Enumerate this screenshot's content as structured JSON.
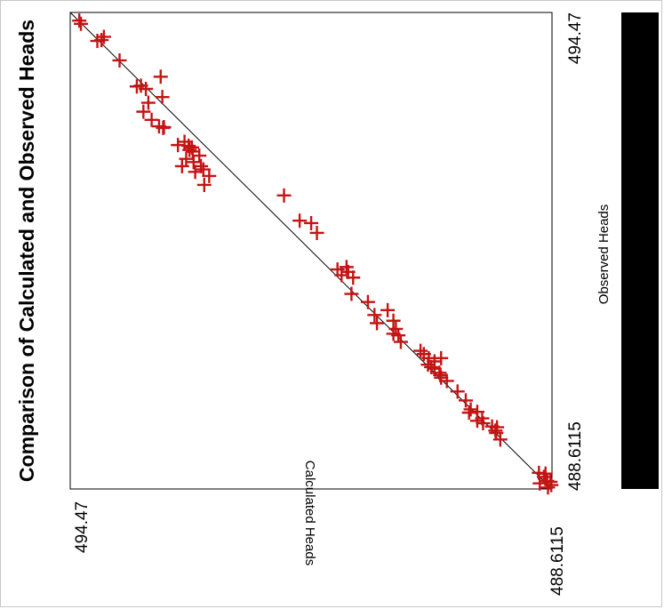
{
  "chart_data": {
    "type": "scatter",
    "title": "Comparison of Calculated and Observed Heads",
    "xlabel": "Observed Heads",
    "ylabel": "Calculated Heads",
    "xlim": [
      488.6115,
      494.47
    ],
    "ylim": [
      488.6115,
      494.47
    ],
    "x_tick_labels": [
      "488.6115",
      "494.47"
    ],
    "y_tick_labels": [
      "488.6115",
      "494.47"
    ],
    "orientation": "rotated 90 degrees counter-clockwise",
    "marker": "plus",
    "marker_color": "#c41414",
    "line_color": "#000000",
    "legend_bar_color": "#000000",
    "reference_line": "y = x",
    "points": [
      [
        494.37,
        494.36
      ],
      [
        494.33,
        494.34
      ],
      [
        494.17,
        494.06
      ],
      [
        494.13,
        494.09
      ],
      [
        494.12,
        494.14
      ],
      [
        493.88,
        493.87
      ],
      [
        493.57,
        493.61
      ],
      [
        493.53,
        493.55
      ],
      [
        493.56,
        493.66
      ],
      [
        493.68,
        493.37
      ],
      [
        493.43,
        493.35
      ],
      [
        493.36,
        493.52
      ],
      [
        493.25,
        493.58
      ],
      [
        493.15,
        493.48
      ],
      [
        493.07,
        493.39
      ],
      [
        493.05,
        493.34
      ],
      [
        493.06,
        493.33
      ],
      [
        492.88,
        493.08
      ],
      [
        492.84,
        493.16
      ],
      [
        492.83,
        493.03
      ],
      [
        492.81,
        492.99
      ],
      [
        492.78,
        493.02
      ],
      [
        492.76,
        492.98
      ],
      [
        492.71,
        492.9
      ],
      [
        492.67,
        493.06
      ],
      [
        492.63,
        492.97
      ],
      [
        492.58,
        493.11
      ],
      [
        492.58,
        492.88
      ],
      [
        492.54,
        492.85
      ],
      [
        492.51,
        492.95
      ],
      [
        492.46,
        492.78
      ],
      [
        492.35,
        492.84
      ],
      [
        492.22,
        491.87
      ],
      [
        491.91,
        491.68
      ],
      [
        491.88,
        491.54
      ],
      [
        491.76,
        491.47
      ],
      [
        491.34,
        491.11
      ],
      [
        491.31,
        491.22
      ],
      [
        491.28,
        491.09
      ],
      [
        491.24,
        491.17
      ],
      [
        491.21,
        491.03
      ],
      [
        491.01,
        491.05
      ],
      [
        490.91,
        490.85
      ],
      [
        490.75,
        490.77
      ],
      [
        490.81,
        490.61
      ],
      [
        490.68,
        490.54
      ],
      [
        490.65,
        490.74
      ],
      [
        490.58,
        490.51
      ],
      [
        490.5,
        490.48
      ],
      [
        490.42,
        490.45
      ],
      [
        490.31,
        490.21
      ],
      [
        490.27,
        490.17
      ],
      [
        490.22,
        490.11
      ],
      [
        490.18,
        490.04
      ],
      [
        490.14,
        490.12
      ],
      [
        490.11,
        490.08
      ],
      [
        490.09,
        490.04
      ],
      [
        490.04,
        489.98
      ],
      [
        490.01,
        489.97
      ],
      [
        489.98,
        489.96
      ],
      [
        490.22,
        489.96
      ],
      [
        490.52,
        490.54
      ],
      [
        489.94,
        489.89
      ],
      [
        489.81,
        489.76
      ],
      [
        489.7,
        489.66
      ],
      [
        489.59,
        489.6
      ],
      [
        489.55,
        489.62
      ],
      [
        489.56,
        489.52
      ],
      [
        489.48,
        489.46
      ],
      [
        489.45,
        489.52
      ],
      [
        489.42,
        489.45
      ],
      [
        489.38,
        489.34
      ],
      [
        489.37,
        489.28
      ],
      [
        489.33,
        489.3
      ],
      [
        489.3,
        489.29
      ],
      [
        489.22,
        489.24
      ],
      [
        488.81,
        488.77
      ],
      [
        488.8,
        488.69
      ],
      [
        488.76,
        488.71
      ],
      [
        488.71,
        488.67
      ],
      [
        488.7,
        488.63
      ],
      [
        488.66,
        488.62
      ],
      [
        488.68,
        488.76
      ],
      [
        488.63,
        488.66
      ]
    ]
  }
}
